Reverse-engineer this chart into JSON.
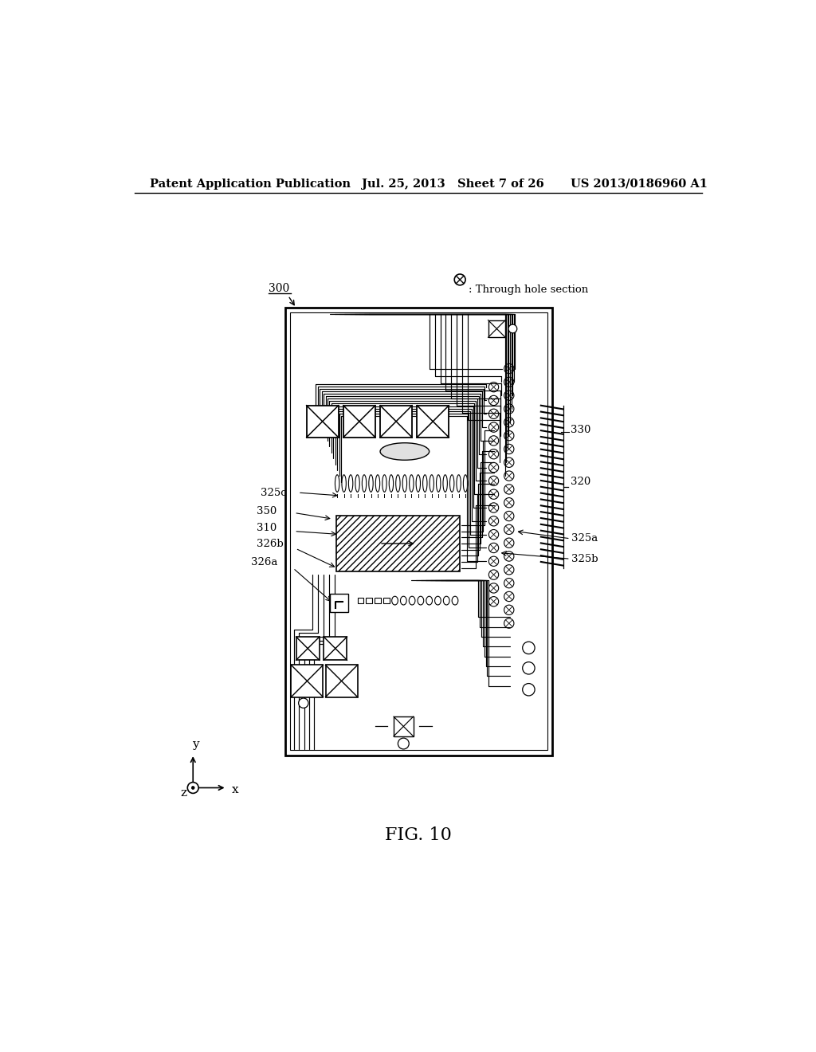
{
  "bg_color": "#ffffff",
  "header_left": "Patent Application Publication",
  "header_mid": "Jul. 25, 2013   Sheet 7 of 26",
  "header_right": "US 2013/0186960 A1",
  "fig_label": "FIG. 10",
  "label_300": "300",
  "label_310": "310",
  "label_320": "320",
  "label_325a": "325a",
  "label_325b": "325b",
  "label_325c": "325c",
  "label_326a": "326a",
  "label_326b": "326b",
  "label_330": "330",
  "label_350": "350",
  "through_hole_text": ": Through hole section"
}
